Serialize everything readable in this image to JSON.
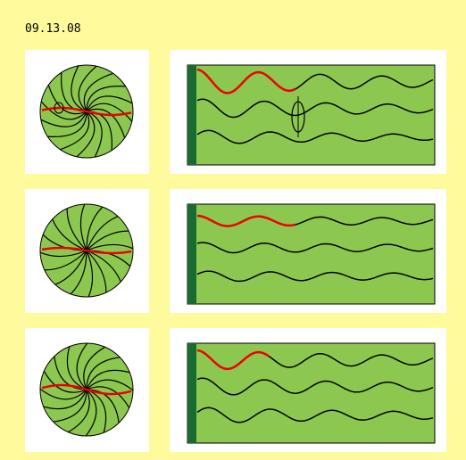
{
  "header": {
    "title": "09.13.08"
  }
}
